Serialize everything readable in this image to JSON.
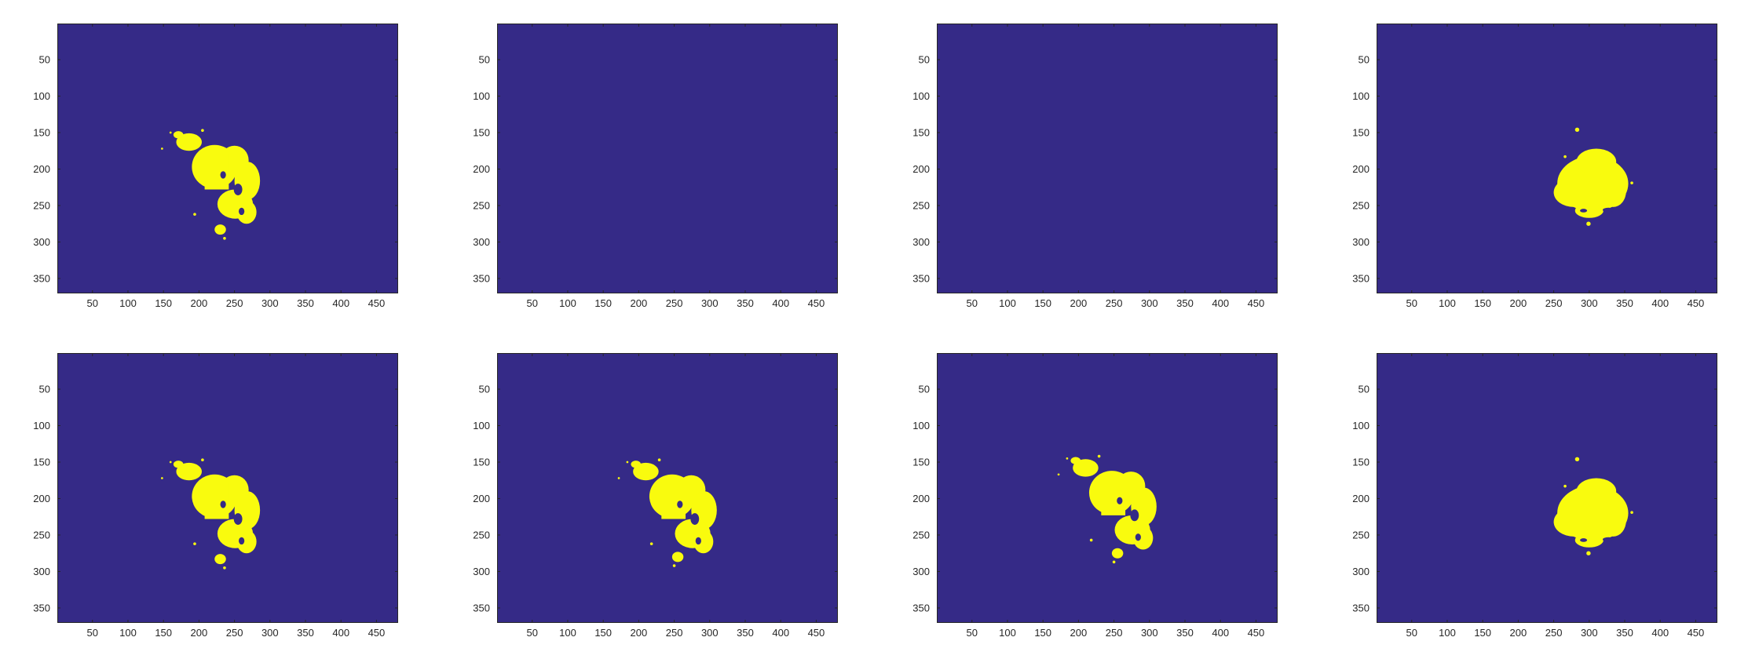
{
  "figure": {
    "background_color": "#ffffff",
    "mask_background_color": "#352a87",
    "mask_foreground_color": "#f9fb0e",
    "axis_color": "#262626",
    "panel_data_extent": {
      "x": [
        0.5,
        480.5
      ],
      "y": [
        0.5,
        370.5
      ]
    },
    "x_ticks": [
      "50",
      "100",
      "150",
      "200",
      "250",
      "300",
      "350",
      "400",
      "450"
    ],
    "y_ticks": [
      "50",
      "100",
      "150",
      "200",
      "250",
      "300",
      "350"
    ],
    "panels": [
      {
        "id": "r1c1",
        "row": 1,
        "col": 1,
        "empty": false,
        "blobs": [
          {
            "cx": 222,
            "cy": 197,
            "rx": 32,
            "ry": 30
          },
          {
            "cx": 250,
            "cy": 188,
            "rx": 20,
            "ry": 20
          },
          {
            "cx": 268,
            "cy": 216,
            "rx": 18,
            "ry": 26
          },
          {
            "cx": 251,
            "cy": 248,
            "rx": 25,
            "ry": 20
          },
          {
            "cx": 267,
            "cy": 259,
            "rx": 14,
            "ry": 16
          },
          {
            "cx": 186,
            "cy": 163,
            "rx": 18,
            "ry": 12
          },
          {
            "cx": 171,
            "cy": 153,
            "rx": 7,
            "ry": 5
          },
          {
            "cx": 230,
            "cy": 283,
            "rx": 8,
            "ry": 7
          }
        ],
        "rects": [
          {
            "x": 208,
            "y": 178,
            "w": 34,
            "h": 50
          }
        ],
        "holes": [
          {
            "cx": 255,
            "cy": 228,
            "rx": 6,
            "ry": 8
          },
          {
            "cx": 260,
            "cy": 258,
            "rx": 4,
            "ry": 5
          },
          {
            "cx": 234,
            "cy": 208,
            "rx": 4,
            "ry": 5
          }
        ],
        "specks": [
          {
            "cx": 148,
            "cy": 172,
            "r": 1.5
          },
          {
            "cx": 194,
            "cy": 262,
            "r": 2
          },
          {
            "cx": 236,
            "cy": 295,
            "r": 2
          },
          {
            "cx": 205,
            "cy": 147,
            "r": 2
          },
          {
            "cx": 160,
            "cy": 150,
            "r": 1.5
          }
        ]
      },
      {
        "id": "r1c2",
        "row": 1,
        "col": 2,
        "empty": true
      },
      {
        "id": "r1c3",
        "row": 1,
        "col": 3,
        "empty": true
      },
      {
        "id": "r1c4",
        "row": 1,
        "col": 4,
        "empty": false,
        "blobs": [
          {
            "cx": 305,
            "cy": 220,
            "rx": 50,
            "ry": 38
          },
          {
            "cx": 310,
            "cy": 190,
            "rx": 28,
            "ry": 18
          },
          {
            "cx": 278,
            "cy": 232,
            "rx": 28,
            "ry": 20
          },
          {
            "cx": 334,
            "cy": 230,
            "rx": 18,
            "ry": 22
          },
          {
            "cx": 300,
            "cy": 257,
            "rx": 20,
            "ry": 10
          }
        ],
        "rects": [],
        "holes": [
          {
            "cx": 327,
            "cy": 256,
            "rx": 8,
            "ry": 3
          },
          {
            "cx": 292,
            "cy": 257,
            "rx": 5,
            "ry": 2.5
          }
        ],
        "specks": [
          {
            "cx": 283,
            "cy": 146,
            "r": 3
          },
          {
            "cx": 299,
            "cy": 275,
            "r": 3
          },
          {
            "cx": 266,
            "cy": 183,
            "r": 2
          },
          {
            "cx": 360,
            "cy": 219,
            "r": 2
          }
        ]
      },
      {
        "id": "r2c1",
        "row": 2,
        "col": 1,
        "empty": false,
        "blobs": [
          {
            "cx": 222,
            "cy": 197,
            "rx": 32,
            "ry": 30
          },
          {
            "cx": 250,
            "cy": 188,
            "rx": 20,
            "ry": 20
          },
          {
            "cx": 268,
            "cy": 216,
            "rx": 18,
            "ry": 26
          },
          {
            "cx": 251,
            "cy": 248,
            "rx": 25,
            "ry": 20
          },
          {
            "cx": 267,
            "cy": 259,
            "rx": 14,
            "ry": 16
          },
          {
            "cx": 186,
            "cy": 163,
            "rx": 18,
            "ry": 12
          },
          {
            "cx": 171,
            "cy": 153,
            "rx": 7,
            "ry": 5
          },
          {
            "cx": 230,
            "cy": 283,
            "rx": 8,
            "ry": 7
          }
        ],
        "rects": [
          {
            "x": 208,
            "y": 178,
            "w": 34,
            "h": 50
          }
        ],
        "holes": [
          {
            "cx": 255,
            "cy": 228,
            "rx": 6,
            "ry": 8
          },
          {
            "cx": 260,
            "cy": 258,
            "rx": 4,
            "ry": 5
          },
          {
            "cx": 234,
            "cy": 208,
            "rx": 4,
            "ry": 5
          }
        ],
        "specks": [
          {
            "cx": 148,
            "cy": 172,
            "r": 1.5
          },
          {
            "cx": 194,
            "cy": 262,
            "r": 2
          },
          {
            "cx": 236,
            "cy": 295,
            "r": 2
          },
          {
            "cx": 205,
            "cy": 147,
            "r": 2
          },
          {
            "cx": 160,
            "cy": 150,
            "r": 1.5
          }
        ]
      },
      {
        "id": "r2c2",
        "row": 2,
        "col": 2,
        "empty": false,
        "blobs": [
          {
            "cx": 247,
            "cy": 197,
            "rx": 32,
            "ry": 30
          },
          {
            "cx": 274,
            "cy": 188,
            "rx": 20,
            "ry": 20
          },
          {
            "cx": 292,
            "cy": 216,
            "rx": 18,
            "ry": 26
          },
          {
            "cx": 276,
            "cy": 248,
            "rx": 25,
            "ry": 20
          },
          {
            "cx": 291,
            "cy": 259,
            "rx": 14,
            "ry": 16
          },
          {
            "cx": 210,
            "cy": 163,
            "rx": 18,
            "ry": 12
          },
          {
            "cx": 196,
            "cy": 153,
            "rx": 7,
            "ry": 5
          },
          {
            "cx": 255,
            "cy": 280,
            "rx": 8,
            "ry": 7
          }
        ],
        "rects": [
          {
            "x": 232,
            "y": 178,
            "w": 34,
            "h": 50
          }
        ],
        "holes": [
          {
            "cx": 279,
            "cy": 228,
            "rx": 6,
            "ry": 8
          },
          {
            "cx": 284,
            "cy": 258,
            "rx": 4,
            "ry": 5
          },
          {
            "cx": 258,
            "cy": 208,
            "rx": 4,
            "ry": 5
          }
        ],
        "specks": [
          {
            "cx": 172,
            "cy": 172,
            "r": 1.5
          },
          {
            "cx": 218,
            "cy": 262,
            "r": 2
          },
          {
            "cx": 250,
            "cy": 292,
            "r": 2
          },
          {
            "cx": 229,
            "cy": 147,
            "r": 2
          },
          {
            "cx": 184,
            "cy": 150,
            "r": 1.5
          }
        ]
      },
      {
        "id": "r2c3",
        "row": 2,
        "col": 3,
        "empty": false,
        "blobs": [
          {
            "cx": 247,
            "cy": 192,
            "rx": 32,
            "ry": 30
          },
          {
            "cx": 274,
            "cy": 183,
            "rx": 20,
            "ry": 20
          },
          {
            "cx": 292,
            "cy": 211,
            "rx": 18,
            "ry": 26
          },
          {
            "cx": 276,
            "cy": 243,
            "rx": 25,
            "ry": 20
          },
          {
            "cx": 291,
            "cy": 254,
            "rx": 14,
            "ry": 16
          },
          {
            "cx": 210,
            "cy": 158,
            "rx": 18,
            "ry": 12
          },
          {
            "cx": 196,
            "cy": 148,
            "rx": 7,
            "ry": 5
          },
          {
            "cx": 255,
            "cy": 275,
            "rx": 8,
            "ry": 7
          }
        ],
        "rects": [
          {
            "x": 232,
            "y": 173,
            "w": 34,
            "h": 50
          }
        ],
        "holes": [
          {
            "cx": 279,
            "cy": 223,
            "rx": 6,
            "ry": 8
          },
          {
            "cx": 284,
            "cy": 253,
            "rx": 4,
            "ry": 5
          },
          {
            "cx": 258,
            "cy": 203,
            "rx": 4,
            "ry": 5
          }
        ],
        "specks": [
          {
            "cx": 172,
            "cy": 167,
            "r": 1.5
          },
          {
            "cx": 218,
            "cy": 257,
            "r": 2
          },
          {
            "cx": 250,
            "cy": 287,
            "r": 2
          },
          {
            "cx": 229,
            "cy": 142,
            "r": 2
          },
          {
            "cx": 184,
            "cy": 145,
            "r": 1.5
          }
        ]
      },
      {
        "id": "r2c4",
        "row": 2,
        "col": 4,
        "empty": false,
        "blobs": [
          {
            "cx": 305,
            "cy": 220,
            "rx": 50,
            "ry": 38
          },
          {
            "cx": 310,
            "cy": 190,
            "rx": 28,
            "ry": 18
          },
          {
            "cx": 278,
            "cy": 232,
            "rx": 28,
            "ry": 20
          },
          {
            "cx": 334,
            "cy": 230,
            "rx": 18,
            "ry": 22
          },
          {
            "cx": 300,
            "cy": 257,
            "rx": 20,
            "ry": 10
          }
        ],
        "rects": [],
        "holes": [
          {
            "cx": 327,
            "cy": 256,
            "rx": 8,
            "ry": 3
          },
          {
            "cx": 292,
            "cy": 257,
            "rx": 5,
            "ry": 2.5
          }
        ],
        "specks": [
          {
            "cx": 283,
            "cy": 146,
            "r": 3
          },
          {
            "cx": 299,
            "cy": 275,
            "r": 3
          },
          {
            "cx": 266,
            "cy": 183,
            "r": 2
          },
          {
            "cx": 360,
            "cy": 219,
            "r": 2
          }
        ]
      }
    ]
  }
}
